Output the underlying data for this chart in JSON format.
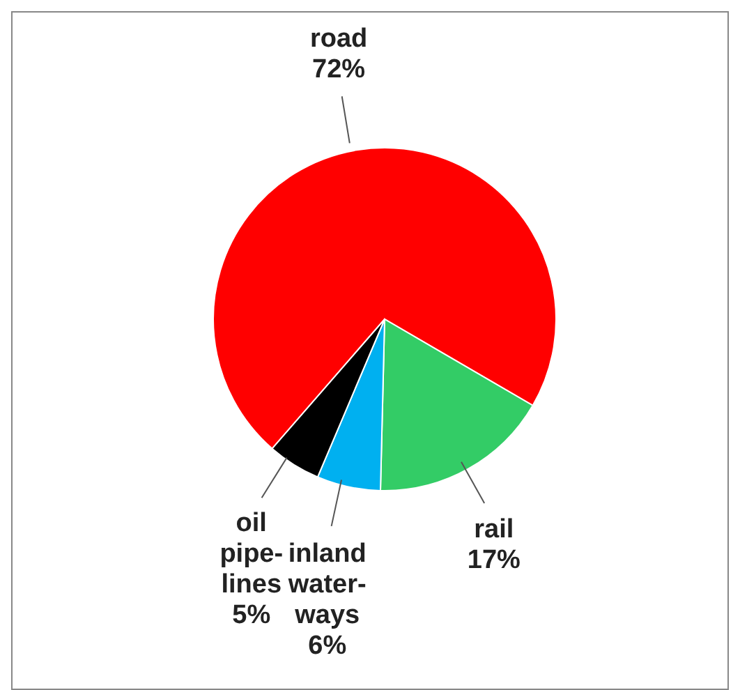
{
  "chart_data": {
    "type": "pie",
    "categories": [
      "road",
      "rail",
      "inland\nwater-\nways",
      "oil\npipe-\nlines"
    ],
    "values": [
      72,
      17,
      6,
      5
    ],
    "colors": [
      "#ff0000",
      "#33cc66",
      "#00b0f0",
      "#000000"
    ],
    "value_labels": [
      "72%",
      "17%",
      "6%",
      "5%"
    ]
  }
}
